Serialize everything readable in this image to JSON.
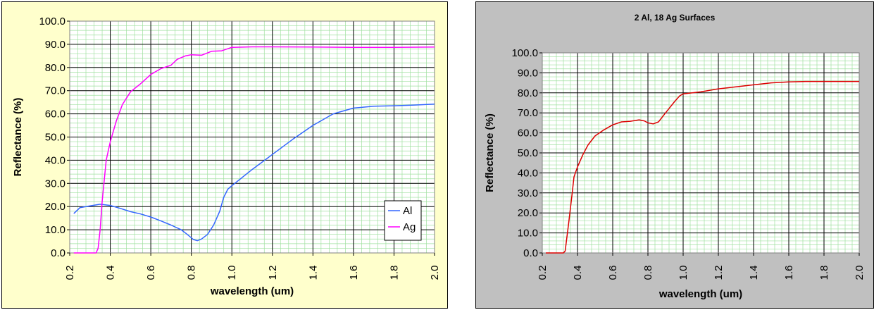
{
  "chart_data": [
    {
      "type": "line",
      "title": "",
      "xlabel": "wavelength (um)",
      "ylabel": "Reflectance (%)",
      "xlim": [
        0.2,
        2.0
      ],
      "ylim": [
        0,
        100
      ],
      "x_ticks": [
        "0.2",
        "0.4",
        "0.6",
        "0.8",
        "1.0",
        "1.2",
        "1.4",
        "1.6",
        "1.8",
        "2.0"
      ],
      "y_ticks": [
        "0.0",
        "10.0",
        "20.0",
        "30.0",
        "40.0",
        "50.0",
        "60.0",
        "70.0",
        "80.0",
        "90.0",
        "100.0"
      ],
      "grid": true,
      "legend": "bottom-right",
      "background": "#ffffcc",
      "series": [
        {
          "name": "Al",
          "color": "#3366ff",
          "points": [
            [
              0.22,
              17
            ],
            [
              0.25,
              19.5
            ],
            [
              0.3,
              20.3
            ],
            [
              0.35,
              21
            ],
            [
              0.4,
              20.5
            ],
            [
              0.45,
              19.2
            ],
            [
              0.5,
              17.8
            ],
            [
              0.55,
              16.8
            ],
            [
              0.6,
              15.5
            ],
            [
              0.65,
              13.8
            ],
            [
              0.7,
              12
            ],
            [
              0.75,
              10
            ],
            [
              0.78,
              8
            ],
            [
              0.81,
              5.8
            ],
            [
              0.83,
              5.3
            ],
            [
              0.85,
              6
            ],
            [
              0.88,
              8
            ],
            [
              0.91,
              12
            ],
            [
              0.94,
              18
            ],
            [
              0.96,
              24
            ],
            [
              0.98,
              27.5
            ],
            [
              1.0,
              29
            ],
            [
              1.1,
              36
            ],
            [
              1.2,
              42.5
            ],
            [
              1.3,
              49
            ],
            [
              1.4,
              55
            ],
            [
              1.5,
              60
            ],
            [
              1.6,
              62.5
            ],
            [
              1.7,
              63.3
            ],
            [
              1.8,
              63.5
            ],
            [
              1.9,
              63.8
            ],
            [
              2.0,
              64.2
            ]
          ]
        },
        {
          "name": "Ag",
          "color": "#ff00ff",
          "points": [
            [
              0.22,
              0
            ],
            [
              0.3,
              0
            ],
            [
              0.33,
              0
            ],
            [
              0.34,
              2
            ],
            [
              0.35,
              10
            ],
            [
              0.36,
              22
            ],
            [
              0.38,
              40
            ],
            [
              0.4,
              48
            ],
            [
              0.43,
              57
            ],
            [
              0.46,
              64
            ],
            [
              0.5,
              69.5
            ],
            [
              0.55,
              73
            ],
            [
              0.6,
              77
            ],
            [
              0.65,
              79.5
            ],
            [
              0.7,
              81
            ],
            [
              0.73,
              83.5
            ],
            [
              0.77,
              85
            ],
            [
              0.8,
              85.5
            ],
            [
              0.85,
              85.3
            ],
            [
              0.9,
              87
            ],
            [
              0.95,
              87.2
            ],
            [
              1.0,
              88.7
            ],
            [
              1.1,
              88.9
            ],
            [
              1.2,
              88.9
            ],
            [
              1.4,
              88.8
            ],
            [
              1.6,
              88.7
            ],
            [
              1.8,
              88.7
            ],
            [
              2.0,
              88.8
            ]
          ]
        }
      ]
    },
    {
      "type": "line",
      "title": "2 Al, 18 Ag Surfaces",
      "xlabel": "wavelength (um)",
      "ylabel": "Reflectance (%)",
      "xlim": [
        0.2,
        2.0
      ],
      "ylim": [
        0,
        100
      ],
      "x_ticks": [
        "0.2",
        "0.4",
        "0.6",
        "0.8",
        "1.0",
        "1.2",
        "1.4",
        "1.6",
        "1.8",
        "2.0"
      ],
      "y_ticks": [
        "0.0",
        "10.0",
        "20.0",
        "30.0",
        "40.0",
        "50.0",
        "60.0",
        "70.0",
        "80.0",
        "90.0",
        "100.0"
      ],
      "grid": true,
      "legend": "none",
      "background": "#c0c0c0",
      "series": [
        {
          "color": "#dd0000",
          "points": [
            [
              0.22,
              0
            ],
            [
              0.32,
              0
            ],
            [
              0.33,
              1
            ],
            [
              0.35,
              15
            ],
            [
              0.37,
              30
            ],
            [
              0.38,
              38
            ],
            [
              0.4,
              43
            ],
            [
              0.43,
              49
            ],
            [
              0.46,
              54
            ],
            [
              0.5,
              58.5
            ],
            [
              0.55,
              61.5
            ],
            [
              0.6,
              64
            ],
            [
              0.65,
              65.5
            ],
            [
              0.7,
              65.8
            ],
            [
              0.75,
              66.5
            ],
            [
              0.78,
              66
            ],
            [
              0.8,
              65
            ],
            [
              0.83,
              64.5
            ],
            [
              0.86,
              65.5
            ],
            [
              0.9,
              70
            ],
            [
              0.95,
              75.5
            ],
            [
              0.98,
              78.5
            ],
            [
              1.0,
              79.5
            ],
            [
              1.1,
              80.5
            ],
            [
              1.2,
              82
            ],
            [
              1.3,
              83
            ],
            [
              1.4,
              84
            ],
            [
              1.5,
              85
            ],
            [
              1.6,
              85.5
            ],
            [
              1.7,
              85.7
            ],
            [
              1.8,
              85.7
            ],
            [
              2.0,
              85.7
            ]
          ]
        }
      ]
    }
  ]
}
